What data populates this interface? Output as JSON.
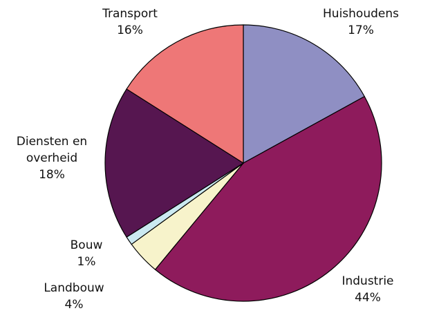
{
  "chart_data": {
    "type": "pie",
    "categories": [
      "Huishoudens",
      "Industrie",
      "Landbouw",
      "Bouw",
      "Diensten en overheid",
      "Transport"
    ],
    "values": [
      17,
      44,
      4,
      1,
      18,
      16
    ],
    "value_labels": [
      "17%",
      "44%",
      "4%",
      "1%",
      "18%",
      "16%"
    ],
    "colors": [
      "#8f8fc3",
      "#8e1b5c",
      "#f7f3cb",
      "#cbe9f1",
      "#561650",
      "#ee7777"
    ]
  }
}
